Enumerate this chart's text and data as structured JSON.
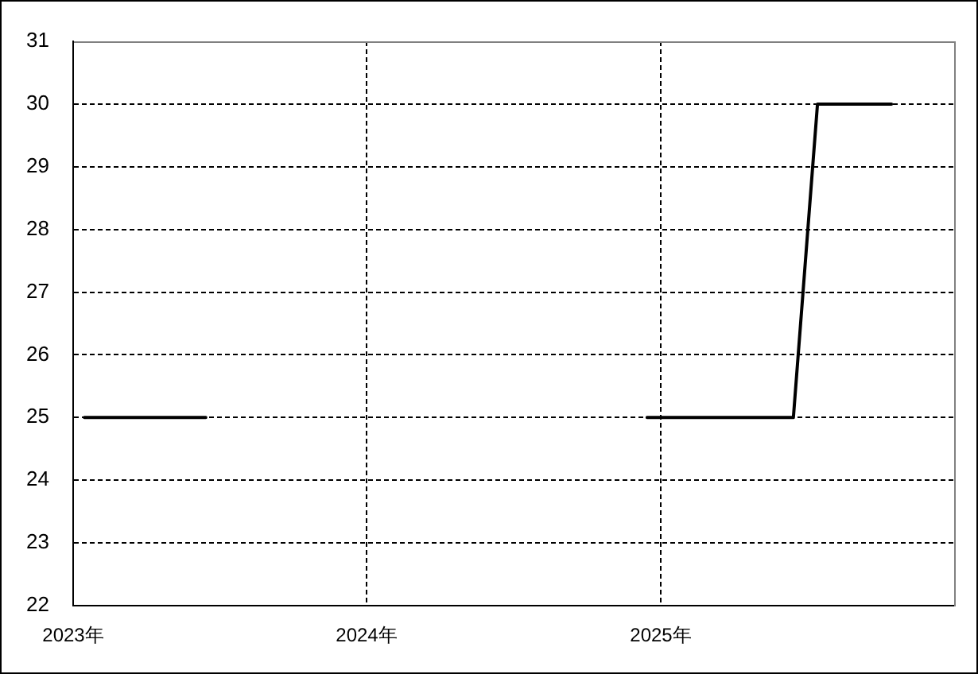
{
  "chart_data": {
    "type": "line",
    "x": [
      "2023-01-15",
      "2023-06-15",
      "2023-07-15",
      "2024-12-15",
      "2025-06-15",
      "2025-07-15",
      "2025-10-15"
    ],
    "series": [
      {
        "color": "#000000",
        "values": [
          25,
          25,
          null,
          25,
          25,
          30,
          30
        ]
      }
    ],
    "xlim": [
      "2023",
      "2026"
    ],
    "xticks": [
      {
        "value": "2023",
        "label": "2023年"
      },
      {
        "value": "2024",
        "label": "2024年"
      },
      {
        "value": "2025",
        "label": "2025年"
      }
    ],
    "ylim": [
      22,
      31
    ],
    "yticks": [
      22,
      23,
      24,
      25,
      26,
      27,
      28,
      29,
      30,
      31
    ],
    "grid": true,
    "marker": "none",
    "line_style": "solid"
  }
}
